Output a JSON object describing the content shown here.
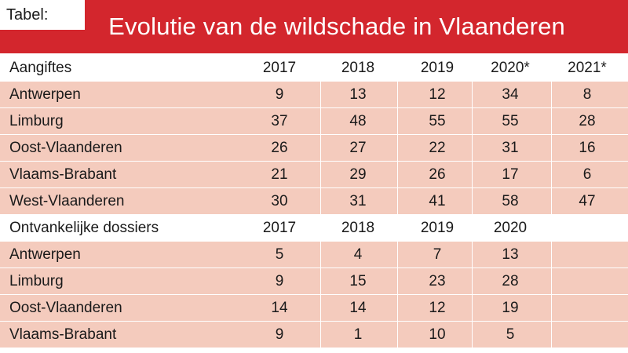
{
  "tag": "Tabel:",
  "title": "Evolutie van de wildschade in Vlaanderen",
  "colors": {
    "header": "#d3262d",
    "row": "#f4cbbd"
  },
  "chart_data": {
    "type": "table",
    "sections": [
      {
        "header": "Aangiftes",
        "columns": [
          "2017",
          "2018",
          "2019",
          "2020*",
          "2021*"
        ],
        "rows": [
          {
            "label": "Antwerpen",
            "values": [
              "9",
              "13",
              "12",
              "34",
              "8"
            ]
          },
          {
            "label": "Limburg",
            "values": [
              "37",
              "48",
              "55",
              "55",
              "28"
            ]
          },
          {
            "label": "Oost-Vlaanderen",
            "values": [
              "26",
              "27",
              "22",
              "31",
              "16"
            ]
          },
          {
            "label": "Vlaams-Brabant",
            "values": [
              "21",
              "29",
              "26",
              "17",
              "6"
            ]
          },
          {
            "label": "West-Vlaanderen",
            "values": [
              "30",
              "31",
              "41",
              "58",
              "47"
            ]
          }
        ]
      },
      {
        "header": "Ontvankelijke dossiers",
        "columns": [
          "2017",
          "2018",
          "2019",
          "2020",
          ""
        ],
        "rows": [
          {
            "label": "Antwerpen",
            "values": [
              "5",
              "4",
              "7",
              "13",
              ""
            ]
          },
          {
            "label": "Limburg",
            "values": [
              "9",
              "15",
              "23",
              "28",
              ""
            ]
          },
          {
            "label": "Oost-Vlaanderen",
            "values": [
              "14",
              "14",
              "12",
              "19",
              ""
            ]
          },
          {
            "label": "Vlaams-Brabant",
            "values": [
              "9",
              "1",
              "10",
              "5",
              ""
            ]
          }
        ]
      }
    ]
  }
}
